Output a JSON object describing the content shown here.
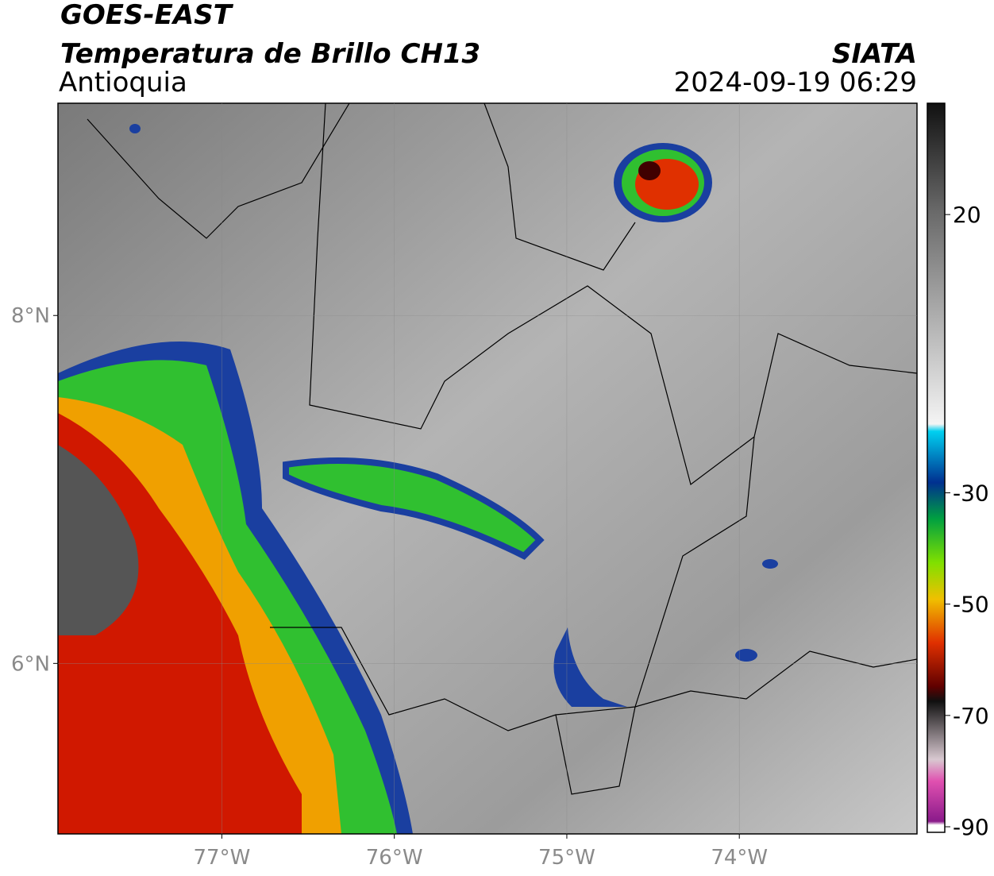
{
  "header": {
    "title": "GOES-EAST",
    "subtitle": "Temperatura de Brillo CH13",
    "region": "Antioquia",
    "source": "SIATA",
    "datetime": "2024-09-19 06:29"
  },
  "map": {
    "xlim": [
      -77.95,
      -72.97
    ],
    "ylim": [
      5.02,
      9.22
    ],
    "xticks": [
      {
        "value": -77,
        "label": "77°W"
      },
      {
        "value": -76,
        "label": "76°W"
      },
      {
        "value": -75,
        "label": "75°W"
      },
      {
        "value": -74,
        "label": "74°W"
      }
    ],
    "yticks": [
      {
        "value": 8,
        "label": "8°N"
      },
      {
        "value": 6,
        "label": "6°N"
      }
    ]
  },
  "colorbar": {
    "lim": [
      -91,
      40
    ],
    "ticks": [
      20,
      -30,
      -50,
      -70,
      -90
    ]
  }
}
